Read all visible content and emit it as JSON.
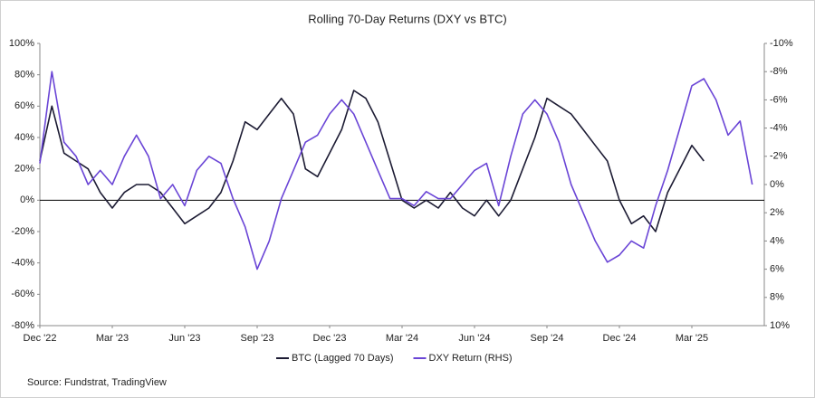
{
  "chart_data": {
    "type": "line",
    "title": "Rolling 70-Day Returns (DXY vs BTC)",
    "source": "Source: Fundstrat, TradingView",
    "x": [
      0,
      0.5,
      1,
      1.5,
      2,
      2.5,
      3,
      3.5,
      4,
      4.5,
      5,
      5.5,
      6,
      6.5,
      7,
      7.5,
      8,
      8.5,
      9,
      9.5,
      10,
      10.5,
      11,
      11.5,
      12,
      12.5,
      13,
      13.5,
      14,
      14.5,
      15,
      15.5,
      16,
      16.5,
      17,
      17.5,
      18,
      18.5,
      19,
      19.5,
      20,
      20.5,
      21,
      21.5,
      22,
      22.5,
      23,
      23.5,
      24,
      24.5,
      25,
      25.5,
      26,
      26.5,
      27,
      27.5,
      28,
      28.5,
      29,
      29.5
    ],
    "xlim": [
      0,
      30
    ],
    "xticks": [
      {
        "value": 0,
        "label": "Dec '22"
      },
      {
        "value": 3,
        "label": "Mar '23"
      },
      {
        "value": 6,
        "label": "Jun '23"
      },
      {
        "value": 9,
        "label": "Sep '23"
      },
      {
        "value": 12,
        "label": "Dec '23"
      },
      {
        "value": 15,
        "label": "Mar '24"
      },
      {
        "value": 18,
        "label": "Jun '24"
      },
      {
        "value": 21,
        "label": "Sep '24"
      },
      {
        "value": 24,
        "label": "Dec '24"
      },
      {
        "value": 27,
        "label": "Mar '25"
      }
    ],
    "ylim": [
      -80,
      100
    ],
    "yticks": [
      {
        "value": -80,
        "label": "-80%"
      },
      {
        "value": -60,
        "label": "-60%"
      },
      {
        "value": -40,
        "label": "-40%"
      },
      {
        "value": -20,
        "label": "-20%"
      },
      {
        "value": 0,
        "label": "0%"
      },
      {
        "value": 20,
        "label": "20%"
      },
      {
        "value": 40,
        "label": "40%"
      },
      {
        "value": 60,
        "label": "60%"
      },
      {
        "value": 80,
        "label": "80%"
      },
      {
        "value": 100,
        "label": "100%"
      }
    ],
    "y2lim": [
      10,
      -10
    ],
    "y2ticks": [
      {
        "value": 10,
        "label": "10%"
      },
      {
        "value": 8,
        "label": "8%"
      },
      {
        "value": 6,
        "label": "6%"
      },
      {
        "value": 4,
        "label": "4%"
      },
      {
        "value": 2,
        "label": "2%"
      },
      {
        "value": 0,
        "label": "0%"
      },
      {
        "value": -2,
        "label": "-2%"
      },
      {
        "value": -4,
        "label": "-4%"
      },
      {
        "value": -6,
        "label": "-6%"
      },
      {
        "value": -8,
        "label": "-8%"
      },
      {
        "value": -10,
        "label": "-10%"
      }
    ],
    "zero_line": true,
    "legend": "bottom",
    "series": [
      {
        "name": "BTC (Lagged 70 Days)",
        "color": "#1c1b33",
        "values": [
          25,
          60,
          30,
          25,
          20,
          5,
          -5,
          5,
          10,
          10,
          5,
          -5,
          -15,
          -10,
          -5,
          5,
          25,
          50,
          45,
          55,
          65,
          55,
          20,
          15,
          30,
          45,
          70,
          65,
          50,
          25,
          0,
          -5,
          0,
          -5,
          5,
          -5,
          -10,
          0,
          -10,
          0,
          20,
          40,
          65,
          60,
          55,
          45,
          35,
          25,
          0,
          -15,
          -10,
          -20,
          5,
          20,
          35,
          25,
          null,
          null,
          null,
          null
        ]
      },
      {
        "name": "DXY Return (RHS)",
        "color": "#6a45d6",
        "axis": "y2",
        "values": [
          -1.5,
          -8,
          -3,
          -2,
          0,
          -1,
          0,
          -2,
          -3.5,
          -2,
          1,
          0,
          1.5,
          -1,
          -2,
          -1.5,
          1,
          3,
          6,
          4,
          1,
          -1,
          -3,
          -3.5,
          -5,
          -6,
          -5,
          -3,
          -1,
          1,
          1,
          1.5,
          0.5,
          1,
          1,
          0,
          -1,
          -1.5,
          1.5,
          -2,
          -5,
          -6,
          -5,
          -3,
          0,
          2,
          4,
          5.5,
          5,
          4,
          4.5,
          1.5,
          -1,
          -4,
          -7,
          -7.5,
          -6,
          -3.5,
          -4.5,
          0
        ]
      }
    ]
  }
}
